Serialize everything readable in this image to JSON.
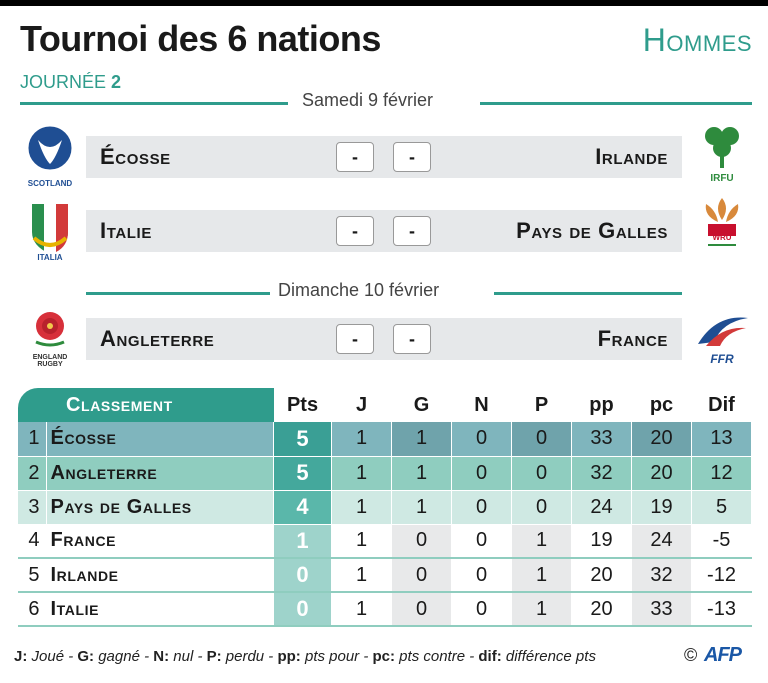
{
  "title": "Tournoi des 6 nations",
  "category": "Hommes",
  "round": {
    "prefix": "JOURNÉE",
    "number": "2"
  },
  "days": [
    {
      "label": "Samedi 9 février",
      "matches": [
        {
          "home": "Écosse",
          "away": "Irlande",
          "home_score": "-",
          "away_score": "-",
          "home_logo": "SCOTLAND",
          "away_logo": "IRFU"
        },
        {
          "home": "Italie",
          "away": "Pays de Galles",
          "home_score": "-",
          "away_score": "-",
          "home_logo": "ITALIA",
          "away_logo": "WRU"
        }
      ]
    },
    {
      "label": "Dimanche 10 février",
      "matches": [
        {
          "home": "Angleterre",
          "away": "France",
          "home_score": "-",
          "away_score": "-",
          "home_logo": "ENGLAND RUGBY",
          "away_logo": "FFR"
        }
      ]
    }
  ],
  "standings": {
    "header": {
      "classement": "Classement",
      "pts": "Pts",
      "j": "J",
      "g": "G",
      "n": "N",
      "p": "P",
      "pp": "pp",
      "pc": "pc",
      "dif": "Dif"
    },
    "rows": [
      {
        "rank": "1",
        "team": "Écosse",
        "pts": "5",
        "j": "1",
        "g": "1",
        "n": "0",
        "p": "0",
        "pp": "33",
        "pc": "20",
        "dif": "13"
      },
      {
        "rank": "2",
        "team": "Angleterre",
        "pts": "5",
        "j": "1",
        "g": "1",
        "n": "0",
        "p": "0",
        "pp": "32",
        "pc": "20",
        "dif": "12"
      },
      {
        "rank": "3",
        "team": "Pays de Galles",
        "pts": "4",
        "j": "1",
        "g": "1",
        "n": "0",
        "p": "0",
        "pp": "24",
        "pc": "19",
        "dif": "5"
      },
      {
        "rank": "4",
        "team": "France",
        "pts": "1",
        "j": "1",
        "g": "0",
        "n": "0",
        "p": "1",
        "pp": "19",
        "pc": "24",
        "dif": "-5"
      },
      {
        "rank": "5",
        "team": "Irlande",
        "pts": "0",
        "j": "1",
        "g": "0",
        "n": "0",
        "p": "1",
        "pp": "20",
        "pc": "32",
        "dif": "-12"
      },
      {
        "rank": "6",
        "team": "Italie",
        "pts": "0",
        "j": "1",
        "g": "0",
        "n": "0",
        "p": "1",
        "pp": "20",
        "pc": "33",
        "dif": "-13"
      }
    ]
  },
  "legend": [
    {
      "k": "J:",
      "v": " Joué - "
    },
    {
      "k": "G:",
      "v": " gagné - "
    },
    {
      "k": "N:",
      "v": " nul - "
    },
    {
      "k": "P:",
      "v": " perdu - "
    },
    {
      "k": "pp:",
      "v": " pts pour - "
    },
    {
      "k": "pc:",
      "v": " pts contre - "
    },
    {
      "k": "dif:",
      "v": " différence pts"
    }
  ],
  "copyright": "©",
  "source": "AFP",
  "colors": {
    "accent": "#2f9c8c",
    "panel": "#e6e8ea"
  }
}
